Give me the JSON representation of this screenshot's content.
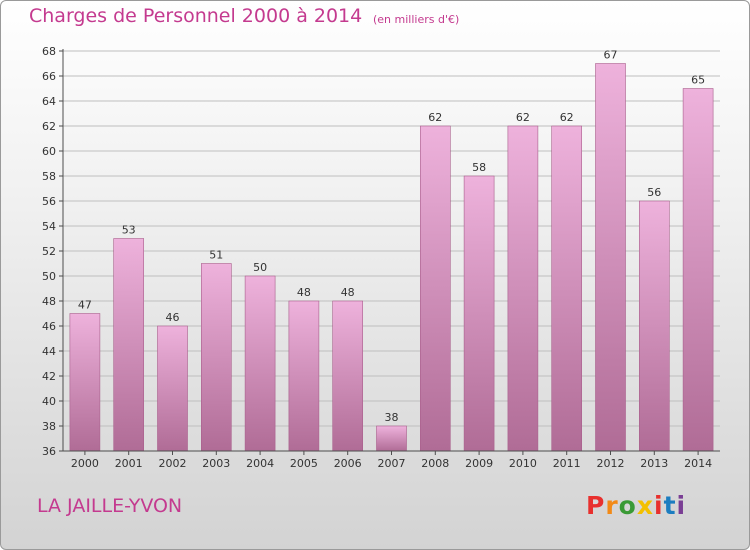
{
  "title": "Charges de Personnel 2000 à 2014",
  "subtitle": "(en milliers d'€)",
  "commune": "LA JAILLE-YVON",
  "logo": {
    "letters": [
      "P",
      "r",
      "o",
      "x",
      "i",
      "t",
      "i"
    ],
    "colors": [
      "#e8302e",
      "#f28a17",
      "#3a9a35",
      "#f3c000",
      "#e8302e",
      "#1c7dc0",
      "#7a3e94"
    ]
  },
  "colors": {
    "bar_top": "#eeb2dc",
    "bar_bottom": "#b06c96",
    "axis": "#4d4d4d",
    "grid": "#bfbfbf",
    "text": "#333333",
    "title": "#c43a8f"
  },
  "chart_data": {
    "type": "bar",
    "title": "Charges de Personnel 2000 à 2014",
    "subtitle": "(en milliers d'€)",
    "categories": [
      "2000",
      "2001",
      "2002",
      "2003",
      "2004",
      "2005",
      "2006",
      "2007",
      "2008",
      "2009",
      "2010",
      "2011",
      "2012",
      "2013",
      "2014"
    ],
    "values": [
      47,
      53,
      46,
      51,
      50,
      48,
      48,
      38,
      62,
      58,
      62,
      62,
      67,
      56,
      65
    ],
    "ylim": [
      36,
      68
    ],
    "yticks": [
      36,
      38,
      40,
      42,
      44,
      46,
      48,
      50,
      52,
      54,
      56,
      58,
      60,
      62,
      64,
      66,
      68
    ],
    "grid": true,
    "data_labels": true
  }
}
